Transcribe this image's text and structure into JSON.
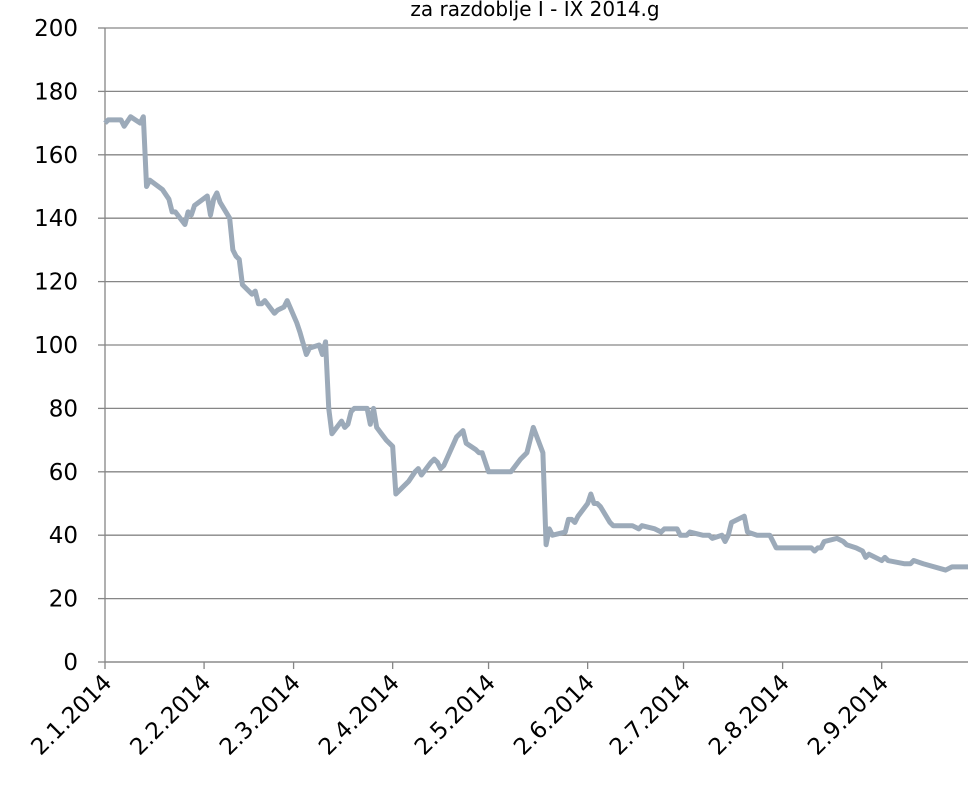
{
  "chart_data": {
    "type": "line",
    "title": "za razdoblje I - IX 2014.g",
    "x": [
      "2014-01-02",
      "2014-01-03",
      "2014-01-07",
      "2014-01-08",
      "2014-01-10",
      "2014-01-13",
      "2014-01-14",
      "2014-01-15",
      "2014-01-16",
      "2014-01-20",
      "2014-01-22",
      "2014-01-23",
      "2014-01-24",
      "2014-01-27",
      "2014-01-28",
      "2014-01-29",
      "2014-01-30",
      "2014-02-03",
      "2014-02-04",
      "2014-02-05",
      "2014-02-06",
      "2014-02-07",
      "2014-02-10",
      "2014-02-11",
      "2014-02-12",
      "2014-02-13",
      "2014-02-14",
      "2014-02-17",
      "2014-02-18",
      "2014-02-19",
      "2014-02-20",
      "2014-02-21",
      "2014-02-24",
      "2014-02-25",
      "2014-02-27",
      "2014-02-28",
      "2014-03-03",
      "2014-03-04",
      "2014-03-06",
      "2014-03-07",
      "2014-03-10",
      "2014-03-11",
      "2014-03-12",
      "2014-03-13",
      "2014-03-14",
      "2014-03-17",
      "2014-03-18",
      "2014-03-19",
      "2014-03-20",
      "2014-03-21",
      "2014-03-25",
      "2014-03-26",
      "2014-03-27",
      "2014-03-28",
      "2014-03-31",
      "2014-04-02",
      "2014-04-03",
      "2014-04-04",
      "2014-04-07",
      "2014-04-09",
      "2014-04-10",
      "2014-04-11",
      "2014-04-14",
      "2014-04-15",
      "2014-04-16",
      "2014-04-17",
      "2014-04-18",
      "2014-04-22",
      "2014-04-23",
      "2014-04-24",
      "2014-04-25",
      "2014-04-28",
      "2014-04-29",
      "2014-04-30",
      "2014-05-02",
      "2014-05-09",
      "2014-05-12",
      "2014-05-13",
      "2014-05-14",
      "2014-05-15",
      "2014-05-16",
      "2014-05-19",
      "2014-05-20",
      "2014-05-21",
      "2014-05-22",
      "2014-05-26",
      "2014-05-27",
      "2014-05-28",
      "2014-05-29",
      "2014-05-30",
      "2014-06-02",
      "2014-06-03",
      "2014-06-04",
      "2014-06-05",
      "2014-06-06",
      "2014-06-09",
      "2014-06-10",
      "2014-06-11",
      "2014-06-16",
      "2014-06-18",
      "2014-06-19",
      "2014-06-23",
      "2014-06-25",
      "2014-06-26",
      "2014-06-30",
      "2014-07-01",
      "2014-07-03",
      "2014-07-04",
      "2014-07-08",
      "2014-07-10",
      "2014-07-11",
      "2014-07-14",
      "2014-07-15",
      "2014-07-16",
      "2014-07-17",
      "2014-07-21",
      "2014-07-22",
      "2014-07-25",
      "2014-07-29",
      "2014-07-30",
      "2014-07-31",
      "2014-08-04",
      "2014-08-11",
      "2014-08-12",
      "2014-08-13",
      "2014-08-14",
      "2014-08-15",
      "2014-08-19",
      "2014-08-21",
      "2014-08-22",
      "2014-08-25",
      "2014-08-27",
      "2014-08-28",
      "2014-08-29",
      "2014-09-02",
      "2014-09-03",
      "2014-09-04",
      "2014-09-09",
      "2014-09-11",
      "2014-09-12",
      "2014-09-15",
      "2014-09-22",
      "2014-09-24",
      "2014-09-29"
    ],
    "series": [
      {
        "color": "#9caab9",
        "values": [
          170,
          171,
          171,
          169,
          172,
          170,
          172,
          150,
          152,
          149,
          146,
          142,
          142,
          138,
          142,
          141,
          144,
          147,
          141,
          146,
          148,
          145,
          140,
          130,
          128,
          127,
          119,
          116,
          117,
          113,
          113,
          114,
          110,
          111,
          112,
          114,
          107,
          104,
          97,
          99,
          100,
          97,
          101,
          80,
          72,
          76,
          74,
          75,
          79,
          80,
          80,
          75,
          80,
          74,
          70,
          68,
          53,
          54,
          57,
          60,
          61,
          59,
          63,
          64,
          63,
          61,
          62,
          71,
          72,
          73,
          69,
          67,
          66,
          66,
          60,
          60,
          64,
          65,
          66,
          70,
          74,
          66,
          37,
          42,
          40,
          41,
          45,
          45,
          44,
          46,
          50,
          53,
          50,
          50,
          49,
          44,
          43,
          43,
          43,
          42,
          43,
          42,
          41,
          42,
          42,
          40,
          40,
          41,
          40,
          40,
          39,
          40,
          38,
          40,
          44,
          46,
          41,
          40,
          40,
          38,
          36,
          36,
          36,
          35,
          36,
          36,
          38,
          39,
          38,
          37,
          36,
          35,
          33,
          34,
          32,
          33,
          32,
          31,
          31,
          32,
          31,
          29,
          30,
          30
        ]
      }
    ],
    "xlim": [
      "2014-01-02",
      "2014-09-29"
    ],
    "xticks": [
      {
        "value": "2014-01-02",
        "label": "2.1.2014"
      },
      {
        "value": "2014-02-02",
        "label": "2.2.2014"
      },
      {
        "value": "2014-03-02",
        "label": "2.3.2014"
      },
      {
        "value": "2014-04-02",
        "label": "2.4.2014"
      },
      {
        "value": "2014-05-02",
        "label": "2.5.2014"
      },
      {
        "value": "2014-06-02",
        "label": "2.6.2014"
      },
      {
        "value": "2014-07-02",
        "label": "2.7.2014"
      },
      {
        "value": "2014-08-02",
        "label": "2.8.2014"
      },
      {
        "value": "2014-09-02",
        "label": "2.9.2014"
      }
    ],
    "ylim": [
      0,
      200
    ],
    "yticks": [
      0,
      20,
      40,
      60,
      80,
      100,
      120,
      140,
      160,
      180,
      200
    ],
    "grid": true
  }
}
